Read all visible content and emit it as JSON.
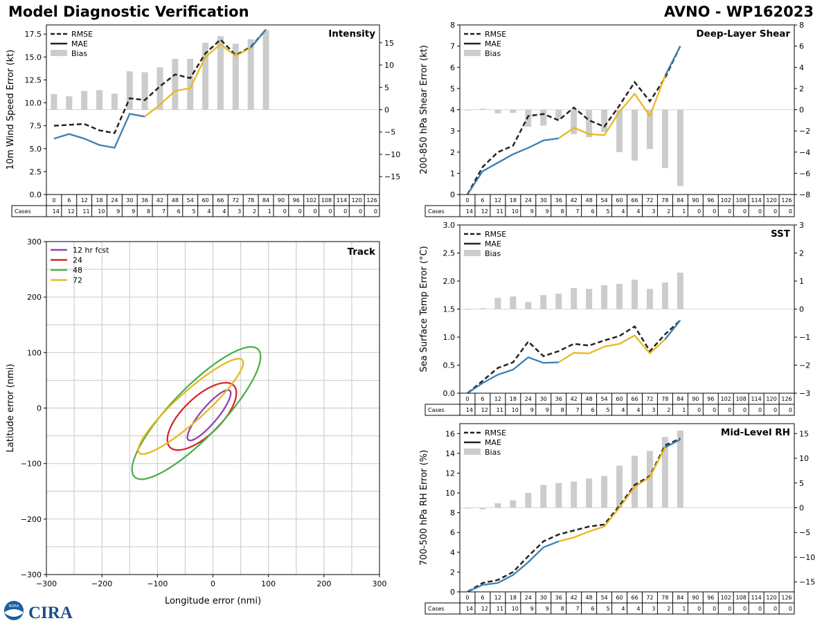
{
  "header": {
    "title": "Model Diagnostic Verification",
    "model_storm": "AVNO - WP162023"
  },
  "logo": {
    "noaa": "NOAA",
    "cira": "CIRA"
  },
  "colors": {
    "rmse": "#222222",
    "mae": "#3a7fb5",
    "late": "#e8b820",
    "bias": "#cccccc",
    "t12": "#8e44ad",
    "t24": "#d62728",
    "t48": "#4cae4c",
    "t72": "#e8b820"
  },
  "legend": {
    "rmse": "RMSE",
    "mae": "MAE",
    "bias": "Bias"
  },
  "cases_label": "Cases",
  "chart_data": [
    {
      "id": "intensity",
      "type": "bar+line",
      "title": "Intensity",
      "ylabel": "10m Wind Speed Error (kt)",
      "ylim": [
        0,
        18.5
      ],
      "y2lim": [
        -19,
        19
      ],
      "yticks": [
        "0.0",
        "2.5",
        "5.0",
        "7.5",
        "10.0",
        "12.5",
        "15.0",
        "17.5"
      ],
      "yticks_v": [
        0,
        2.5,
        5,
        7.5,
        10,
        12.5,
        15,
        17.5
      ],
      "y2ticks": [
        -15,
        -10,
        -5,
        0,
        5,
        10,
        15
      ],
      "x": [
        0,
        6,
        12,
        18,
        24,
        30,
        36,
        42,
        48,
        54,
        60,
        66,
        72,
        78,
        84,
        90,
        96,
        102,
        108,
        114,
        120,
        126
      ],
      "cases": [
        14,
        12,
        11,
        10,
        9,
        9,
        8,
        7,
        6,
        5,
        4,
        4,
        3,
        2,
        1,
        0,
        0,
        0,
        0,
        0,
        0,
        0
      ],
      "rmse": [
        7.5,
        7.6,
        7.7,
        7.0,
        6.7,
        10.5,
        10.3,
        11.8,
        13.1,
        12.7,
        15.4,
        16.9,
        15.2,
        16.1,
        18.0
      ],
      "mae": [
        6.1,
        6.6,
        6.1,
        5.4,
        5.1,
        8.8,
        8.5,
        9.8,
        11.3,
        11.6,
        15.0,
        16.4,
        15.1,
        16.0,
        18.0
      ],
      "bias": [
        3.5,
        3.0,
        4.2,
        4.4,
        3.6,
        8.6,
        8.4,
        9.5,
        11.4,
        11.4,
        15.0,
        16.5,
        14.8,
        15.8,
        17.8
      ],
      "late_from": 36
    },
    {
      "id": "shear",
      "type": "bar+line",
      "title": "Deep-Layer Shear",
      "ylabel": "200-850 hPa Shear Error (kt)",
      "ylim": [
        0,
        8
      ],
      "y2lim": [
        -8,
        8
      ],
      "yticks": [
        "0",
        "1",
        "2",
        "3",
        "4",
        "5",
        "6",
        "7",
        "8"
      ],
      "yticks_v": [
        0,
        1,
        2,
        3,
        4,
        5,
        6,
        7,
        8
      ],
      "y2ticks": [
        -8,
        -6,
        -4,
        -2,
        0,
        2,
        4,
        6,
        8
      ],
      "x": [
        0,
        6,
        12,
        18,
        24,
        30,
        36,
        42,
        48,
        54,
        60,
        66,
        72,
        78,
        84,
        90,
        96,
        102,
        108,
        114,
        120,
        126
      ],
      "cases": [
        14,
        12,
        11,
        10,
        9,
        9,
        8,
        7,
        6,
        5,
        4,
        4,
        3,
        2,
        1,
        0,
        0,
        0,
        0,
        0,
        0,
        0
      ],
      "rmse": [
        0.0,
        1.3,
        2.0,
        2.3,
        3.7,
        3.8,
        3.5,
        4.1,
        3.5,
        3.2,
        4.2,
        5.3,
        4.4,
        5.5,
        7.0
      ],
      "mae": [
        0.0,
        1.1,
        1.5,
        1.9,
        2.2,
        2.55,
        2.65,
        3.15,
        2.85,
        2.8,
        3.9,
        4.75,
        3.7,
        5.6,
        7.0
      ],
      "bias": [
        0.0,
        0.1,
        -0.35,
        -0.3,
        -1.6,
        -1.5,
        -0.9,
        -2.3,
        -2.6,
        -2.1,
        -4.0,
        -4.8,
        -3.7,
        -5.5,
        -7.2
      ],
      "late_from": 36
    },
    {
      "id": "sst",
      "type": "bar+line",
      "title": "SST",
      "ylabel": "Sea Surface Temp Error (°C)",
      "ylim": [
        0,
        3
      ],
      "y2lim": [
        -3,
        3
      ],
      "yticks": [
        "0.0",
        "0.5",
        "1.0",
        "1.5",
        "2.0",
        "2.5",
        "3.0"
      ],
      "yticks_v": [
        0,
        0.5,
        1,
        1.5,
        2,
        2.5,
        3
      ],
      "y2ticks": [
        -3,
        -2,
        -1,
        0,
        1,
        2,
        3
      ],
      "x": [
        0,
        6,
        12,
        18,
        24,
        30,
        36,
        42,
        48,
        54,
        60,
        66,
        72,
        78,
        84,
        90,
        96,
        102,
        108,
        114,
        120,
        126
      ],
      "cases": [
        14,
        12,
        11,
        10,
        9,
        9,
        8,
        7,
        6,
        5,
        4,
        4,
        3,
        2,
        1,
        0,
        0,
        0,
        0,
        0,
        0,
        0
      ],
      "rmse": [
        0.0,
        0.22,
        0.45,
        0.55,
        0.92,
        0.66,
        0.75,
        0.88,
        0.85,
        0.94,
        1.02,
        1.19,
        0.75,
        1.05,
        1.3
      ],
      "mae": [
        0.0,
        0.18,
        0.33,
        0.42,
        0.64,
        0.54,
        0.55,
        0.72,
        0.71,
        0.83,
        0.88,
        1.03,
        0.71,
        0.96,
        1.3
      ],
      "bias": [
        0.0,
        0.03,
        0.4,
        0.45,
        0.25,
        0.5,
        0.55,
        0.75,
        0.72,
        0.85,
        0.9,
        1.05,
        0.72,
        0.95,
        1.3
      ],
      "late_from": 36
    },
    {
      "id": "rh",
      "type": "bar+line",
      "title": "Mid-Level RH",
      "ylabel": "700-500 hPa RH Error (%)",
      "ylim": [
        0,
        17
      ],
      "y2lim": [
        -17,
        17
      ],
      "yticks": [
        "0",
        "2",
        "4",
        "6",
        "8",
        "10",
        "12",
        "14",
        "16"
      ],
      "yticks_v": [
        0,
        2,
        4,
        6,
        8,
        10,
        12,
        14,
        16
      ],
      "y2ticks": [
        -15,
        -10,
        -5,
        0,
        5,
        10,
        15
      ],
      "x": [
        0,
        6,
        12,
        18,
        24,
        30,
        36,
        42,
        48,
        54,
        60,
        66,
        72,
        78,
        84,
        90,
        96,
        102,
        108,
        114,
        120,
        126
      ],
      "cases": [
        14,
        12,
        11,
        10,
        9,
        9,
        8,
        7,
        6,
        5,
        4,
        4,
        3,
        2,
        1,
        0,
        0,
        0,
        0,
        0,
        0,
        0
      ],
      "rmse": [
        0.0,
        0.9,
        1.2,
        2.0,
        3.6,
        5.1,
        5.8,
        6.2,
        6.6,
        6.8,
        8.7,
        10.8,
        11.7,
        14.8,
        15.5
      ],
      "mae": [
        0.0,
        0.7,
        0.9,
        1.7,
        3.0,
        4.5,
        5.1,
        5.5,
        6.1,
        6.6,
        8.5,
        10.6,
        11.6,
        14.6,
        15.4
      ],
      "bias": [
        0.0,
        -0.3,
        0.9,
        1.5,
        3.0,
        4.6,
        5.0,
        5.3,
        5.9,
        6.4,
        8.5,
        10.5,
        11.5,
        14.3,
        15.6
      ],
      "late_from": 36
    },
    {
      "id": "track",
      "type": "scatter-ellipse",
      "title": "Track",
      "xlabel": "Longitude error (nmi)",
      "ylabel": "Latitude error (nmi)",
      "xlim": [
        -300,
        300
      ],
      "ylim": [
        -300,
        300
      ],
      "xticks": [
        -300,
        -200,
        -100,
        0,
        100,
        200,
        300
      ],
      "yticks": [
        -300,
        -200,
        -100,
        0,
        100,
        200,
        300
      ],
      "grid_step": 50,
      "ellipses": [
        {
          "label": "12 hr fcst",
          "color_key": "t12",
          "cx": -7,
          "cy": -13,
          "rx": 58,
          "ry": 15,
          "angle_deg": 50
        },
        {
          "label": "24",
          "color_key": "t24",
          "cx": -20,
          "cy": -15,
          "rx": 80,
          "ry": 34,
          "angle_deg": 44
        },
        {
          "label": "48",
          "color_key": "t48",
          "cx": -30,
          "cy": -9,
          "rx": 160,
          "ry": 45,
          "angle_deg": 46
        },
        {
          "label": "72",
          "color_key": "t72",
          "cx": -40,
          "cy": 3,
          "rx": 125,
          "ry": 26,
          "angle_deg": 42
        }
      ]
    }
  ]
}
